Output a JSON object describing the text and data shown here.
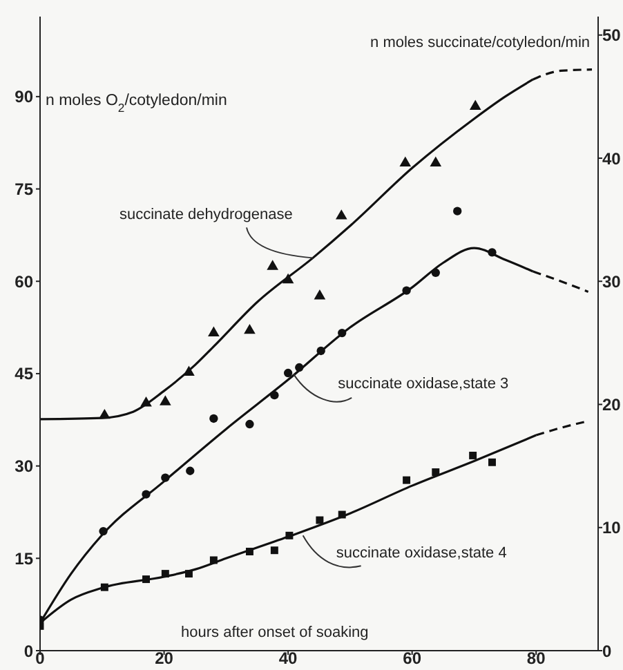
{
  "chart_data": {
    "type": "scatter",
    "xlabel": "hours after onset of soaking",
    "ylabel": "n moles O$_{2}$/cotyledon/min",
    "y2label": "n moles succinate/cotyledon/min",
    "xlim": [
      0,
      90
    ],
    "xticks": [
      0,
      20,
      40,
      60,
      80
    ],
    "ylim": [
      0,
      103
    ],
    "yticks": [
      0,
      15,
      30,
      45,
      60,
      75,
      90
    ],
    "y2lim": [
      0,
      51.5
    ],
    "y2ticks": [
      0,
      10,
      20,
      30,
      40,
      50
    ],
    "grid": false,
    "legend": false,
    "annotations": [
      {
        "text": "succinate dehydrogenase",
        "x": 44,
        "y": 63.8
      },
      {
        "text": "succinate oxidase,state 3",
        "x": 40.9,
        "y": 44.9
      },
      {
        "text": "succinate oxidase,state 4",
        "x": 42.4,
        "y": 18.7
      }
    ],
    "series": [
      {
        "marker": "triangle",
        "axis": "y2",
        "color": "#111111",
        "x": [
          10.4,
          17.1,
          20.2,
          24,
          28,
          33.8,
          37.5,
          40,
          45.1,
          48.6,
          58.9,
          63.8,
          70.2
        ],
        "values": [
          19.1,
          20.1,
          20.2,
          22.6,
          25.8,
          26,
          31.2,
          30.1,
          28.8,
          35.3,
          39.6,
          39.6,
          44.2
        ]
      },
      {
        "type": "line",
        "marker": "none",
        "line_style": "solid",
        "axis": "y2",
        "color": "#111111",
        "x": [
          0,
          10,
          15,
          20,
          25,
          28,
          35,
          44,
          50,
          60,
          70,
          75,
          79.5
        ],
        "values": [
          18.8,
          18.9,
          19.4,
          21.1,
          23.2,
          24.7,
          28.3,
          31.9,
          34.5,
          39.2,
          43.2,
          45,
          46.4
        ]
      },
      {
        "type": "line",
        "marker": "none",
        "line_style": "dashed",
        "axis": "y2",
        "color": "#111111",
        "x": [
          79.5,
          84,
          89
        ],
        "values": [
          46.4,
          47.1,
          47.2
        ]
      },
      {
        "marker": "circle",
        "color": "#111111",
        "x": [
          0,
          10.2,
          17.1,
          20.2,
          24.2,
          28,
          33.8,
          37.8,
          40,
          41.8,
          45.3,
          48.7,
          59.1,
          63.8,
          67.3,
          72.9
        ],
        "values": [
          5,
          19.4,
          25.4,
          28.1,
          29.2,
          37.7,
          36.8,
          41.5,
          45.1,
          46,
          48.7,
          51.6,
          58.5,
          61.4,
          71.4,
          64.7
        ]
      },
      {
        "type": "line",
        "marker": "none",
        "line_style": "solid",
        "color": "#111111",
        "x": [
          0,
          5,
          10,
          20,
          30,
          40,
          50,
          60,
          65,
          70,
          75,
          79.5
        ],
        "values": [
          4.5,
          12.5,
          18.8,
          27.5,
          36,
          44,
          52.5,
          59,
          63,
          65.4,
          63.5,
          61.6
        ]
      },
      {
        "type": "line",
        "marker": "none",
        "line_style": "dashed",
        "color": "#111111",
        "x": [
          79.5,
          84,
          88.4
        ],
        "values": [
          61.6,
          60,
          58.3
        ]
      },
      {
        "marker": "square",
        "color": "#111111",
        "x": [
          0,
          10.4,
          17.1,
          20.2,
          24,
          28,
          33.8,
          37.8,
          40.2,
          45.1,
          48.7,
          59.1,
          63.8,
          69.8,
          72.9
        ],
        "values": [
          4,
          10.3,
          11.6,
          12.5,
          12.5,
          14.7,
          16.1,
          16.3,
          18.7,
          21.2,
          22.1,
          27.7,
          29,
          31.7,
          30.6
        ]
      },
      {
        "type": "line",
        "marker": "none",
        "line_style": "solid",
        "color": "#111111",
        "x": [
          0,
          5,
          10,
          20,
          25,
          30,
          40,
          50,
          60,
          70,
          80
        ],
        "values": [
          4.5,
          8.3,
          10.2,
          12,
          13.2,
          15,
          18.5,
          22.3,
          26.8,
          30.8,
          35
        ]
      },
      {
        "type": "line",
        "marker": "none",
        "line_style": "dashed",
        "color": "#111111",
        "x": [
          80,
          84,
          88.4
        ],
        "values": [
          35,
          36.2,
          37.3
        ]
      }
    ]
  }
}
